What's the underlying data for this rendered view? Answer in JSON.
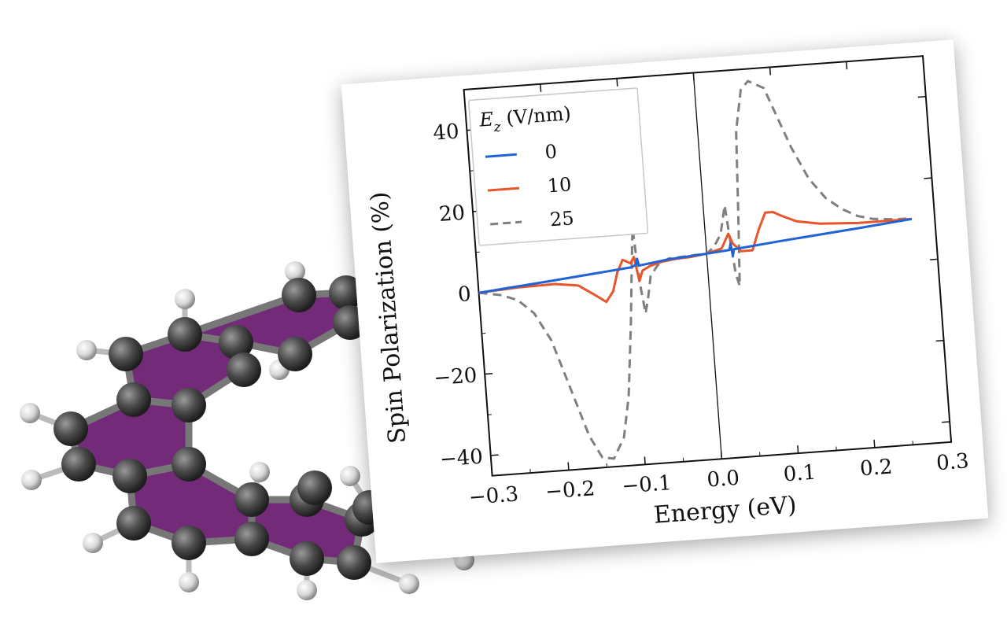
{
  "chart_data": {
    "type": "line",
    "xlabel": "Energy (eV)",
    "ylabel": "Spin Polarization (%)",
    "xlim": [
      -0.3,
      0.3
    ],
    "ylim": [
      -45,
      50
    ],
    "xticks": [
      -0.3,
      -0.2,
      -0.1,
      0.0,
      0.1,
      0.2,
      0.3
    ],
    "xtick_labels": [
      "−0.3",
      "−0.2",
      "−0.1",
      "0.0",
      "0.1",
      "0.2",
      "0.3"
    ],
    "yticks": [
      -40,
      -20,
      0,
      20,
      40
    ],
    "ytick_labels": [
      "−40",
      "−20",
      "0",
      "20",
      "40"
    ],
    "grid": false,
    "legend": {
      "title_symbol": "E",
      "title_subscript": "z",
      "title_unit": " (V/nm)",
      "placement": "top-left"
    },
    "series": [
      {
        "name": "0",
        "color": "#1f63d6",
        "dash": "solid",
        "x": [
          -0.3,
          -0.2,
          -0.1,
          -0.093,
          -0.091,
          -0.089,
          -0.05,
          0.0,
          0.03,
          0.032,
          0.034,
          0.036,
          0.1,
          0.2,
          0.27
        ],
        "y": [
          0.0,
          1.7,
          3.5,
          4.0,
          5.5,
          3.8,
          4.8,
          5.5,
          6.0,
          7.5,
          4.5,
          6.1,
          7.3,
          9.0,
          10.3
        ]
      },
      {
        "name": "10",
        "color": "#e8552b",
        "dash": "solid",
        "x": [
          -0.3,
          -0.25,
          -0.2,
          -0.17,
          -0.15,
          -0.135,
          -0.125,
          -0.118,
          -0.11,
          -0.1,
          -0.095,
          -0.09,
          -0.085,
          -0.075,
          -0.06,
          -0.04,
          -0.02,
          0.0,
          0.02,
          0.03,
          0.035,
          0.045,
          0.06,
          0.07,
          0.08,
          0.09,
          0.1,
          0.12,
          0.15,
          0.2,
          0.25,
          0.27
        ],
        "y": [
          0.0,
          0.6,
          0.8,
          0.0,
          -2.5,
          -4.5,
          -2.0,
          2.5,
          5.5,
          4.5,
          6.0,
          0.0,
          2.5,
          3.5,
          4.3,
          4.8,
          5.0,
          5.5,
          6.5,
          10.0,
          7.5,
          5.5,
          5.5,
          10.5,
          14.5,
          14.5,
          13.5,
          11.8,
          10.8,
          10.3,
          10.3,
          10.3
        ]
      },
      {
        "name": "25",
        "color": "#7f7f7f",
        "dash": "dashed",
        "x": [
          -0.3,
          -0.27,
          -0.25,
          -0.23,
          -0.21,
          -0.19,
          -0.17,
          -0.155,
          -0.14,
          -0.125,
          -0.115,
          -0.105,
          -0.098,
          -0.094,
          -0.09,
          -0.085,
          -0.08,
          -0.075,
          -0.065,
          -0.05,
          -0.03,
          0.0,
          0.01,
          0.02,
          0.028,
          0.032,
          0.036,
          0.04,
          0.045,
          0.05,
          0.06,
          0.07,
          0.09,
          0.1,
          0.12,
          0.14,
          0.16,
          0.18,
          0.2,
          0.22,
          0.25,
          0.27
        ],
        "y": [
          0.0,
          -1.0,
          -2.5,
          -6.0,
          -13.0,
          -25.0,
          -37.0,
          -42.5,
          -43.0,
          -38.0,
          -28.0,
          -10.0,
          5.0,
          13.0,
          0.0,
          -8.0,
          -4.0,
          1.0,
          3.5,
          5.0,
          5.2,
          5.5,
          7.0,
          10.0,
          17.0,
          8.0,
          0.0,
          -3.0,
          15.0,
          35.0,
          45.0,
          47.0,
          45.0,
          40.0,
          30.0,
          22.0,
          17.0,
          14.0,
          12.0,
          11.0,
          10.5,
          10.5
        ]
      }
    ]
  }
}
